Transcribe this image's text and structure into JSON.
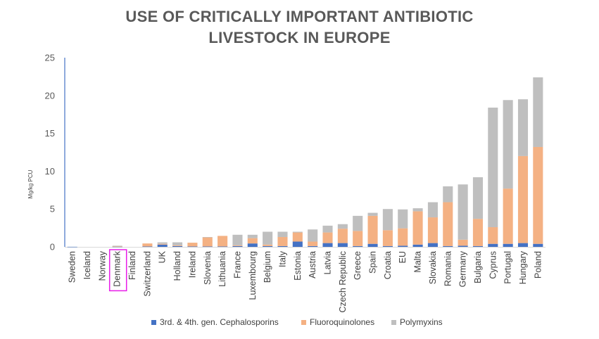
{
  "chart_data": {
    "type": "bar",
    "stacked": true,
    "title_lines": [
      "USE OF CRITICALLY IMPORTANT ANTIBIOTIC",
      "LIVESTOCK IN EUROPE"
    ],
    "ylabel": "Mg/kg PCU",
    "xlabel": "",
    "ylim": [
      0,
      25
    ],
    "yticks": [
      0,
      5,
      10,
      15,
      20,
      25
    ],
    "grid": false,
    "legend_position": "bottom",
    "highlighted_category": "Denmark",
    "highlight_color": "#e81ce8",
    "categories": [
      "Sweden",
      "Iceland",
      "Norway",
      "Denmark",
      "Finland",
      "Switzerland",
      "UK",
      "Holland",
      "Ireland",
      "Slovenia",
      "Lithuania",
      "France",
      "Luxembourg",
      "Belgium",
      "Italy",
      "Estonia",
      "Austria",
      "Latvia",
      "Czech Republic",
      "Greece",
      "Spain",
      "Croatia",
      "EU",
      "Malta",
      "Slovakia",
      "Romania",
      "Germany",
      "Bulgaria",
      "Cyprus",
      "Portugal",
      "Hungary",
      "Poland"
    ],
    "series": [
      {
        "name": "3rd. & 4th. gen. Cephalosporins",
        "color": "#4472c4",
        "values": [
          0.01,
          0,
          0,
          0.02,
          0,
          0.05,
          0.3,
          0.1,
          0.05,
          0.05,
          0.05,
          0.1,
          0.45,
          0.1,
          0.1,
          0.7,
          0.1,
          0.5,
          0.5,
          0.1,
          0.4,
          0.1,
          0.15,
          0.3,
          0.5,
          0.1,
          0.15,
          0.1,
          0.4,
          0.4,
          0.5,
          0.4
        ]
      },
      {
        "name": "Fluoroquinolones",
        "color": "#f4b183",
        "values": [
          0,
          0,
          0,
          0.03,
          0,
          0.4,
          0.1,
          0.1,
          0.5,
          1.2,
          1.4,
          0.1,
          0.7,
          0.2,
          1.2,
          1.2,
          0.6,
          1.4,
          1.9,
          2.0,
          3.7,
          2.1,
          2.3,
          4.4,
          3.4,
          5.8,
          0.8,
          3.6,
          2.2,
          7.3,
          11.5,
          12.8
        ]
      },
      {
        "name": "Polymyxins",
        "color": "#bfbfbf",
        "values": [
          0,
          0,
          0,
          0.1,
          0,
          0,
          0.2,
          0.4,
          0,
          0.05,
          0,
          1.4,
          0.45,
          1.7,
          0.7,
          0.1,
          1.6,
          0.9,
          0.6,
          2.0,
          0.4,
          2.8,
          2.5,
          0.4,
          2.0,
          2.1,
          7.3,
          5.5,
          15.8,
          11.7,
          7.5,
          9.2
        ]
      }
    ]
  }
}
